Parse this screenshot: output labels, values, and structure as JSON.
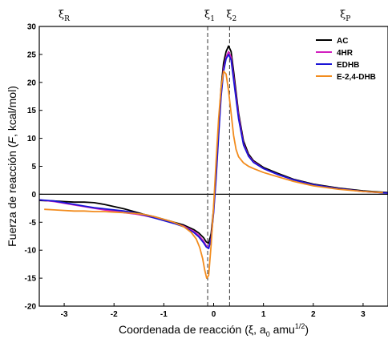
{
  "chart_data": {
    "type": "line",
    "title": "",
    "xlabel": "Coordenada de reacción (ξ, a₀ amu^1/2)",
    "xlabel_parts": {
      "main": "Coordenada de reacción (ξ, a",
      "sub0": "0",
      "unit": " amu",
      "exp": "1/2",
      "close": ")"
    },
    "ylabel": "Fuerza de reacción (F, kcal/mol)",
    "ylabel_parts": {
      "main": "Fuerza de reacción (",
      "italic": "F",
      "rest": ", kcal/mol)"
    },
    "xlim": [
      -3.5,
      3.5
    ],
    "ylim": [
      -20,
      30
    ],
    "xticks": [
      -3,
      -2,
      -1,
      0,
      1,
      2,
      3
    ],
    "yticks": [
      -20,
      -15,
      -10,
      -5,
      0,
      5,
      10,
      15,
      20,
      25,
      30
    ],
    "grid": false,
    "legend_position": "top-right",
    "reference_lines": [
      {
        "label": "ξ",
        "sub": "1",
        "x": -0.12,
        "style": "dashed"
      },
      {
        "label": "ξ",
        "sub": "2",
        "x": 0.32,
        "style": "dashed"
      }
    ],
    "region_labels": [
      {
        "label": "ξ",
        "sub": "R",
        "x": -3.05
      },
      {
        "label": "ξ",
        "sub": "P",
        "x": 2.6
      }
    ],
    "zero_line": 0,
    "series": [
      {
        "name": "AC",
        "color": "#000000",
        "x": [
          -3.5,
          -3.2,
          -3.0,
          -2.8,
          -2.6,
          -2.4,
          -2.2,
          -2.0,
          -1.8,
          -1.6,
          -1.4,
          -1.2,
          -1.0,
          -0.8,
          -0.6,
          -0.4,
          -0.3,
          -0.2,
          -0.15,
          -0.1,
          -0.05,
          0.0,
          0.05,
          0.1,
          0.15,
          0.2,
          0.25,
          0.3,
          0.35,
          0.4,
          0.5,
          0.6,
          0.7,
          0.8,
          1.0,
          1.3,
          1.6,
          2.0,
          2.5,
          3.0,
          3.5
        ],
        "y": [
          -1.1,
          -1.2,
          -1.3,
          -1.4,
          -1.4,
          -1.5,
          -1.8,
          -2.2,
          -2.6,
          -3.1,
          -3.6,
          -4.0,
          -4.5,
          -5.0,
          -5.5,
          -6.3,
          -6.9,
          -7.8,
          -8.5,
          -8.8,
          -7.0,
          -2.5,
          4.0,
          12.0,
          19.0,
          23.5,
          25.5,
          26.5,
          25.5,
          22.0,
          14.5,
          9.5,
          7.2,
          6.0,
          4.8,
          3.7,
          2.7,
          1.8,
          1.1,
          0.6,
          0.3
        ]
      },
      {
        "name": "4HR",
        "color": "#d21fbf",
        "x": [
          -3.5,
          -3.2,
          -3.0,
          -2.8,
          -2.6,
          -2.4,
          -2.2,
          -2.0,
          -1.8,
          -1.6,
          -1.4,
          -1.2,
          -1.0,
          -0.8,
          -0.6,
          -0.4,
          -0.3,
          -0.2,
          -0.15,
          -0.1,
          -0.05,
          0.0,
          0.05,
          0.1,
          0.15,
          0.2,
          0.25,
          0.3,
          0.35,
          0.4,
          0.5,
          0.6,
          0.7,
          0.8,
          1.0,
          1.3,
          1.6,
          2.0,
          2.5,
          3.0,
          3.5
        ],
        "y": [
          -1.0,
          -1.3,
          -1.6,
          -1.9,
          -2.2,
          -2.5,
          -2.8,
          -3.0,
          -3.3,
          -3.5,
          -3.8,
          -4.2,
          -4.6,
          -5.1,
          -5.7,
          -6.6,
          -7.3,
          -8.4,
          -9.2,
          -9.6,
          -7.8,
          -3.0,
          3.5,
          11.0,
          18.0,
          22.5,
          24.5,
          25.5,
          24.5,
          21.0,
          14.0,
          9.0,
          6.9,
          5.8,
          4.6,
          3.5,
          2.6,
          1.7,
          1.0,
          0.5,
          0.2
        ]
      },
      {
        "name": "EDHB",
        "color": "#1a14d6",
        "x": [
          -3.5,
          -3.2,
          -3.0,
          -2.8,
          -2.6,
          -2.4,
          -2.2,
          -2.0,
          -1.8,
          -1.6,
          -1.4,
          -1.2,
          -1.0,
          -0.8,
          -0.6,
          -0.4,
          -0.3,
          -0.2,
          -0.15,
          -0.1,
          -0.05,
          0.0,
          0.05,
          0.1,
          0.15,
          0.2,
          0.25,
          0.3,
          0.35,
          0.4,
          0.5,
          0.6,
          0.7,
          0.8,
          1.0,
          1.3,
          1.6,
          2.0,
          2.5,
          3.0,
          3.5
        ],
        "y": [
          -1.0,
          -1.2,
          -1.5,
          -1.8,
          -2.1,
          -2.4,
          -2.6,
          -2.8,
          -3.0,
          -3.3,
          -3.7,
          -4.2,
          -4.7,
          -5.2,
          -5.8,
          -6.8,
          -7.6,
          -8.7,
          -9.4,
          -9.7,
          -8.0,
          -3.2,
          3.0,
          10.5,
          17.5,
          22.0,
          24.2,
          25.0,
          24.0,
          20.5,
          13.5,
          8.8,
          6.8,
          5.7,
          4.6,
          3.5,
          2.6,
          1.7,
          1.0,
          0.5,
          0.2
        ]
      },
      {
        "name": "E-2,4-DHB",
        "color": "#f28c1e",
        "x": [
          -3.4,
          -3.2,
          -3.0,
          -2.8,
          -2.6,
          -2.4,
          -2.2,
          -2.0,
          -1.8,
          -1.6,
          -1.4,
          -1.2,
          -1.0,
          -0.8,
          -0.6,
          -0.45,
          -0.35,
          -0.28,
          -0.22,
          -0.18,
          -0.14,
          -0.1,
          -0.05,
          0.0,
          0.05,
          0.1,
          0.15,
          0.2,
          0.25,
          0.3,
          0.35,
          0.4,
          0.45,
          0.5,
          0.6,
          0.7,
          0.8,
          1.0,
          1.3,
          1.6,
          2.0,
          2.5,
          3.0,
          3.4
        ],
        "y": [
          -2.7,
          -2.8,
          -2.9,
          -3.0,
          -3.0,
          -3.1,
          -3.1,
          -3.2,
          -3.3,
          -3.4,
          -3.6,
          -4.0,
          -4.5,
          -5.0,
          -5.8,
          -6.8,
          -8.0,
          -9.5,
          -11.5,
          -13.5,
          -15.0,
          -14.5,
          -9.0,
          -2.0,
          6.0,
          13.5,
          19.0,
          22.0,
          21.5,
          18.5,
          14.5,
          10.5,
          8.0,
          6.7,
          5.6,
          5.0,
          4.6,
          3.9,
          3.1,
          2.3,
          1.5,
          0.9,
          0.5,
          0.3
        ]
      }
    ]
  }
}
